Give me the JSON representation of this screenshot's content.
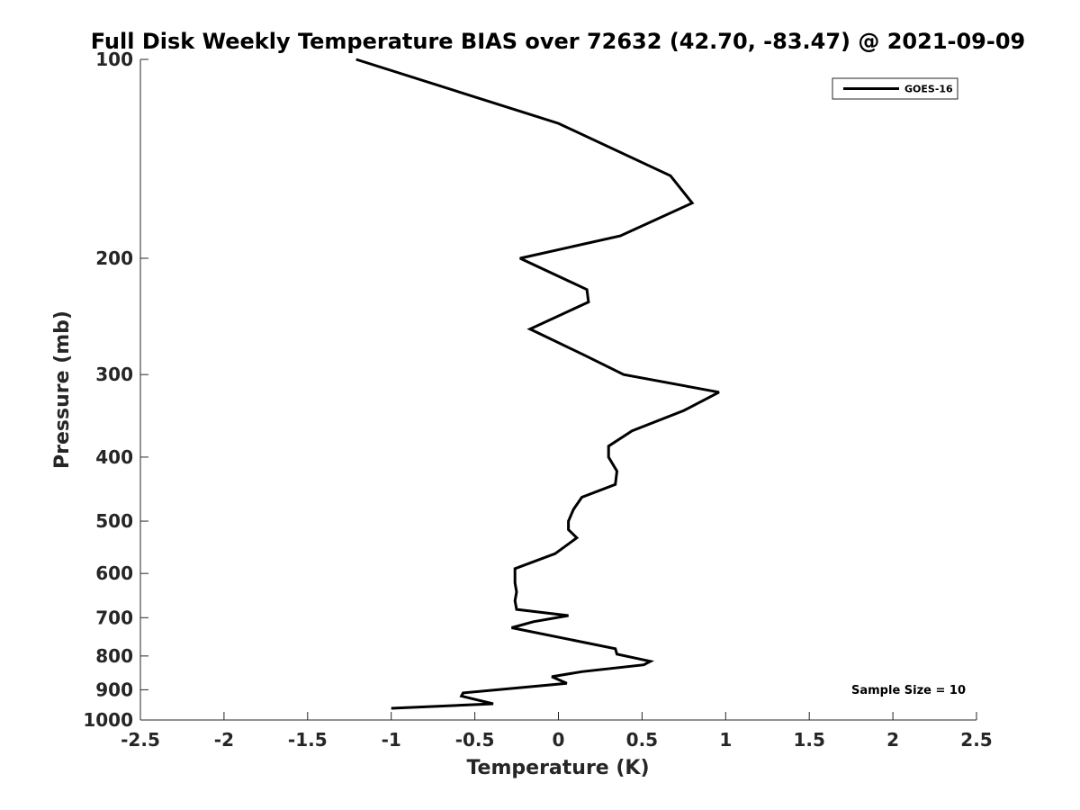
{
  "chart_data": {
    "type": "line",
    "title": "Full Disk Weekly Temperature BIAS over 72632 (42.70, -83.47) @ 2021-09-09",
    "xlabel": "Temperature (K)",
    "ylabel": "Pressure (mb)",
    "xlim": [
      -2.5,
      2.5
    ],
    "ylim": [
      100,
      1000
    ],
    "y_scale": "log",
    "y_reversed": true,
    "x_ticks": [
      "-2.5",
      "-2",
      "-1.5",
      "-1",
      "-0.5",
      "0",
      "0.5",
      "1",
      "1.5",
      "2",
      "2.5"
    ],
    "x_tick_values": [
      -2.5,
      -2,
      -1.5,
      -1,
      -0.5,
      0,
      0.5,
      1,
      1.5,
      2,
      2.5
    ],
    "y_ticks": [
      "100",
      "200",
      "300",
      "400",
      "500",
      "600",
      "700",
      "800",
      "900",
      "1000"
    ],
    "y_tick_values": [
      100,
      200,
      300,
      400,
      500,
      600,
      700,
      800,
      900,
      1000
    ],
    "grid": false,
    "legend_position": "top-right",
    "series": [
      {
        "name": "GOES-16",
        "color": "#000000",
        "points": [
          {
            "x": -1.21,
            "p": 100
          },
          {
            "x": 0.0,
            "p": 125
          },
          {
            "x": 0.67,
            "p": 150
          },
          {
            "x": 0.8,
            "p": 165
          },
          {
            "x": 0.37,
            "p": 185
          },
          {
            "x": -0.23,
            "p": 200
          },
          {
            "x": 0.17,
            "p": 223
          },
          {
            "x": 0.18,
            "p": 233
          },
          {
            "x": -0.17,
            "p": 256
          },
          {
            "x": 0.15,
            "p": 280
          },
          {
            "x": 0.39,
            "p": 300
          },
          {
            "x": 0.96,
            "p": 319
          },
          {
            "x": 0.75,
            "p": 340
          },
          {
            "x": 0.44,
            "p": 365
          },
          {
            "x": 0.3,
            "p": 385
          },
          {
            "x": 0.3,
            "p": 400
          },
          {
            "x": 0.35,
            "p": 420
          },
          {
            "x": 0.34,
            "p": 440
          },
          {
            "x": 0.14,
            "p": 460
          },
          {
            "x": 0.09,
            "p": 480
          },
          {
            "x": 0.06,
            "p": 500
          },
          {
            "x": 0.06,
            "p": 515
          },
          {
            "x": 0.11,
            "p": 530
          },
          {
            "x": -0.02,
            "p": 560
          },
          {
            "x": -0.26,
            "p": 590
          },
          {
            "x": -0.26,
            "p": 620
          },
          {
            "x": -0.25,
            "p": 640
          },
          {
            "x": -0.26,
            "p": 660
          },
          {
            "x": -0.25,
            "p": 680
          },
          {
            "x": 0.06,
            "p": 695
          },
          {
            "x": -0.15,
            "p": 710
          },
          {
            "x": -0.28,
            "p": 725
          },
          {
            "x": 0.34,
            "p": 780
          },
          {
            "x": 0.35,
            "p": 795
          },
          {
            "x": 0.55,
            "p": 815
          },
          {
            "x": 0.51,
            "p": 825
          },
          {
            "x": 0.14,
            "p": 845
          },
          {
            "x": -0.04,
            "p": 860
          },
          {
            "x": 0.05,
            "p": 880
          },
          {
            "x": -0.57,
            "p": 910
          },
          {
            "x": -0.58,
            "p": 920
          },
          {
            "x": -0.39,
            "p": 945
          },
          {
            "x": -1.0,
            "p": 960
          }
        ]
      }
    ],
    "annotations": [
      "Sample Size = 10"
    ]
  }
}
